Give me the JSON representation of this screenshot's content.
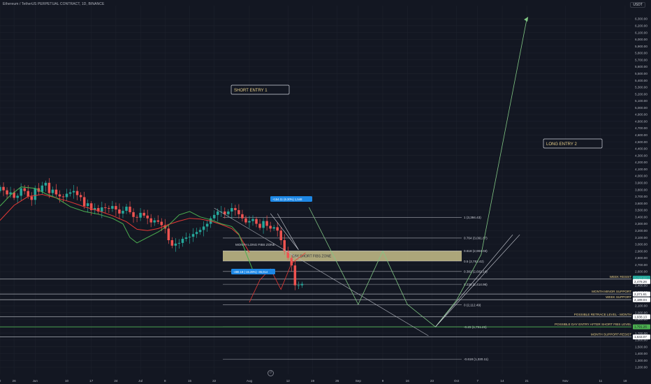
{
  "title": "Ethereum / TetherUS PERPETUAL CONTRACT, 1D, BINANCE",
  "currency": "USDT",
  "colors": {
    "bg": "#131722",
    "grid": "#1e222d",
    "axis_text": "#b2b5be",
    "up": "#26a69a",
    "down": "#ef5350",
    "ema_fast": "#4caf50",
    "ema_slow": "#e53935",
    "fib_line": "#d1d4dc",
    "zone_fill": "#c8c08a",
    "green_line": "#4caf50",
    "label_yellow": "#e8d08a",
    "projection": "#81c784",
    "short_path": "#e53935",
    "callout_blue": "#1e88e5"
  },
  "icons": {
    "reset": "reset-chart-icon"
  },
  "chart_data": {
    "type": "candlestick",
    "price_axis": {
      "min": 1200,
      "max": 6450,
      "ticks": [
        "6,300.00",
        "6,200.00",
        "6,100.00",
        "6,000.00",
        "5,900.00",
        "5,800.00",
        "5,700.00",
        "5,600.00",
        "5,500.00",
        "5,400.00",
        "5,300.00",
        "5,200.00",
        "5,100.00",
        "5,000.00",
        "4,900.00",
        "4,800.00",
        "4,700.00",
        "4,600.00",
        "4,500.00",
        "4,400.00",
        "4,300.00",
        "4,200.00",
        "4,100.00",
        "4,000.00",
        "3,900.00",
        "3,800.00",
        "3,700.00",
        "3,600.00",
        "3,500.00",
        "3,400.00",
        "3,300.00",
        "3,200.00",
        "3,100.00",
        "3,000.00",
        "2,900.00",
        "2,800.00",
        "2,700.00",
        "2,600.00",
        "2,500.00",
        "2,400.00",
        "2,300.00",
        "2,200.00",
        "2,100.00",
        "2,000.00",
        "1,900.00",
        "1,800.00",
        "1,700.00",
        "1,600.00",
        "1,500.00",
        "1,400.00",
        "1,300.00",
        "1,200.00"
      ]
    },
    "time_axis": {
      "labels": [
        {
          "label": "0",
          "day": -30
        },
        {
          "label": "26",
          "day": -26
        },
        {
          "label": "Jun",
          "day": -20
        },
        {
          "label": "10",
          "day": -11
        },
        {
          "label": "17",
          "day": -4
        },
        {
          "label": "24",
          "day": 3
        },
        {
          "label": "Jul",
          "day": 10
        },
        {
          "label": "8",
          "day": 17
        },
        {
          "label": "15",
          "day": 24
        },
        {
          "label": "22",
          "day": 31
        },
        {
          "label": "Aug",
          "day": 41
        },
        {
          "label": "12",
          "day": 52
        },
        {
          "label": "19",
          "day": 59
        },
        {
          "label": "26",
          "day": 66
        },
        {
          "label": "Sep",
          "day": 72
        },
        {
          "label": "9",
          "day": 79
        },
        {
          "label": "16",
          "day": 86
        },
        {
          "label": "23",
          "day": 93
        },
        {
          "label": "Oct",
          "day": 100
        },
        {
          "label": "7",
          "day": 106
        },
        {
          "label": "14",
          "day": 113
        },
        {
          "label": "21",
          "day": 120
        },
        {
          "label": "Nov",
          "day": 131
        },
        {
          "label": "11",
          "day": 141
        },
        {
          "label": "18",
          "day": 148
        }
      ],
      "day_min": -30,
      "day_max": 150
    },
    "candles_closes": [
      3840,
      3790,
      3730,
      3760,
      3680,
      3710,
      3820,
      3780,
      3700,
      3650,
      3820,
      3770,
      3860,
      3900,
      3750,
      3800,
      3730,
      3700,
      3690,
      3740,
      3760,
      3780,
      3720,
      3690,
      3560,
      3600,
      3500,
      3530,
      3480,
      3540,
      3530,
      3520,
      3560,
      3510,
      3450,
      3490,
      3550,
      3470,
      3400,
      3390,
      3460,
      3420,
      3380,
      3320,
      3350,
      3330,
      3280,
      3230,
      3060,
      2980,
      3010,
      3020,
      3080,
      3100,
      3110,
      3150,
      3180,
      3210,
      3260,
      3300,
      3380,
      3430,
      3480,
      3480,
      3440,
      3480,
      3530,
      3500,
      3440,
      3380,
      3320,
      3340,
      3370,
      3300,
      3240,
      3340,
      3270,
      3230,
      3250,
      3200,
      3060,
      2900,
      2800,
      2690,
      2400,
      2400,
      2420
    ],
    "bull_bear_start_day": -31,
    "ema_fast": [
      [
        -30,
        3560
      ],
      [
        -27,
        3720
      ],
      [
        -24,
        3840
      ],
      [
        -20,
        3820
      ],
      [
        -17,
        3740
      ],
      [
        -14,
        3680
      ],
      [
        -10,
        3550
      ],
      [
        -6,
        3480
      ],
      [
        -2,
        3440
      ],
      [
        2,
        3380
      ],
      [
        5,
        3300
      ],
      [
        7,
        3100
      ],
      [
        9,
        3020
      ],
      [
        12,
        3100
      ],
      [
        15,
        3180
      ],
      [
        18,
        3280
      ],
      [
        21,
        3430
      ],
      [
        24,
        3480
      ],
      [
        27,
        3400
      ],
      [
        30,
        3360
      ],
      [
        33,
        3300
      ],
      [
        36,
        3260
      ],
      [
        38,
        3150
      ],
      [
        40,
        2880
      ],
      [
        42,
        2620
      ]
    ],
    "ema_slow": [
      [
        -30,
        3350
      ],
      [
        -26,
        3570
      ],
      [
        -22,
        3700
      ],
      [
        -18,
        3730
      ],
      [
        -14,
        3680
      ],
      [
        -10,
        3620
      ],
      [
        -6,
        3550
      ],
      [
        -2,
        3490
      ],
      [
        2,
        3420
      ],
      [
        6,
        3330
      ],
      [
        9,
        3220
      ],
      [
        12,
        3200
      ],
      [
        15,
        3230
      ],
      [
        18,
        3290
      ],
      [
        21,
        3340
      ],
      [
        24,
        3380
      ],
      [
        27,
        3370
      ],
      [
        30,
        3340
      ],
      [
        33,
        3290
      ],
      [
        36,
        3230
      ],
      [
        38,
        3140
      ],
      [
        41,
        2880
      ]
    ],
    "fib_levels": [
      {
        "label": "1 (3,394.43)",
        "price": 3394.43
      },
      {
        "label": "0.764 (3,091.87)",
        "price": 3091.87
      },
      {
        "label": "0.618 (2,904.03)",
        "price": 2904.03
      },
      {
        "label": "0.5 (2,753.42)",
        "price": 2753.42
      },
      {
        "label": "0.382 (2,602.14)",
        "price": 2602.14
      },
      {
        "label": "0.236 (2,414.96)",
        "price": 2414.96
      },
      {
        "label": "0 (2,112.49)",
        "price": 2112.49
      },
      {
        "label": "-0.25 (1,791.26)",
        "price": 1791.26
      },
      {
        "label": "-0.618 (1,320.11)",
        "price": 1320.11
      }
    ],
    "zone": {
      "label": "DAY SHORT FIBS ZONE",
      "top": 2904.03,
      "bottom": 2753.42
    },
    "levels": [
      {
        "label": "WEEK RESIST",
        "price": 2490.32,
        "badge": "2,490.32"
      },
      {
        "label": "MONTH MINOR SUPPORT",
        "price": 2271.61,
        "badge": "2,271.61"
      },
      {
        "label": "WEEK SUPPORT",
        "price": 2189.04,
        "badge": "2,189.04"
      },
      {
        "label": "POSSIBLE RETRACE LEVEL - MONTH",
        "price": 1938.13,
        "badge": "1,938.13"
      },
      {
        "label": "POSSIBLE DAY ENTRY AFTER SHORT FIBS LEVEL",
        "price": 1791.26,
        "badge": "1,791.26"
      },
      {
        "label": "MONTH SUPPORT-RESIST",
        "price": 1643.07,
        "badge": "1,643.07"
      }
    ],
    "current_price_badges": [
      "2,485.58",
      "22:31:52",
      "2,478.26"
    ],
    "annotations": [
      {
        "label": "SHORT ENTRY 1"
      },
      {
        "label": "LONG ENTRY 2"
      },
      {
        "label": "MONTH LONG FIBS ZONE"
      }
    ],
    "callouts": [
      "+154.11 (6.30%) 1,548",
      "-480.18 (-15.29%) -36,014"
    ],
    "short_path": [
      [
        41,
        2150
      ],
      [
        44,
        2480
      ],
      [
        47,
        2640
      ],
      [
        50,
        2340
      ],
      [
        53,
        2720
      ],
      [
        57,
        2875
      ]
    ],
    "projection": [
      [
        58,
        3540
      ],
      [
        72,
        2120
      ],
      [
        79,
        2900
      ],
      [
        86,
        2120
      ],
      [
        94,
        1791
      ],
      [
        100,
        2180
      ],
      [
        107,
        2850
      ],
      [
        120,
        6300
      ]
    ],
    "long_lines": [
      [
        [
          94,
          1791
        ],
        [
          116,
          3140
        ]
      ],
      [
        [
          94,
          1791
        ],
        [
          118,
          3140
        ]
      ]
    ],
    "trend_line": [
      [
        31,
        3530
      ],
      [
        92,
        1660
      ]
    ],
    "short_lines": [
      [
        [
          55,
          2920
        ],
        [
          47,
          3450
        ]
      ],
      [
        [
          55,
          2920
        ],
        [
          49,
          3450
        ]
      ]
    ],
    "grid": true
  }
}
